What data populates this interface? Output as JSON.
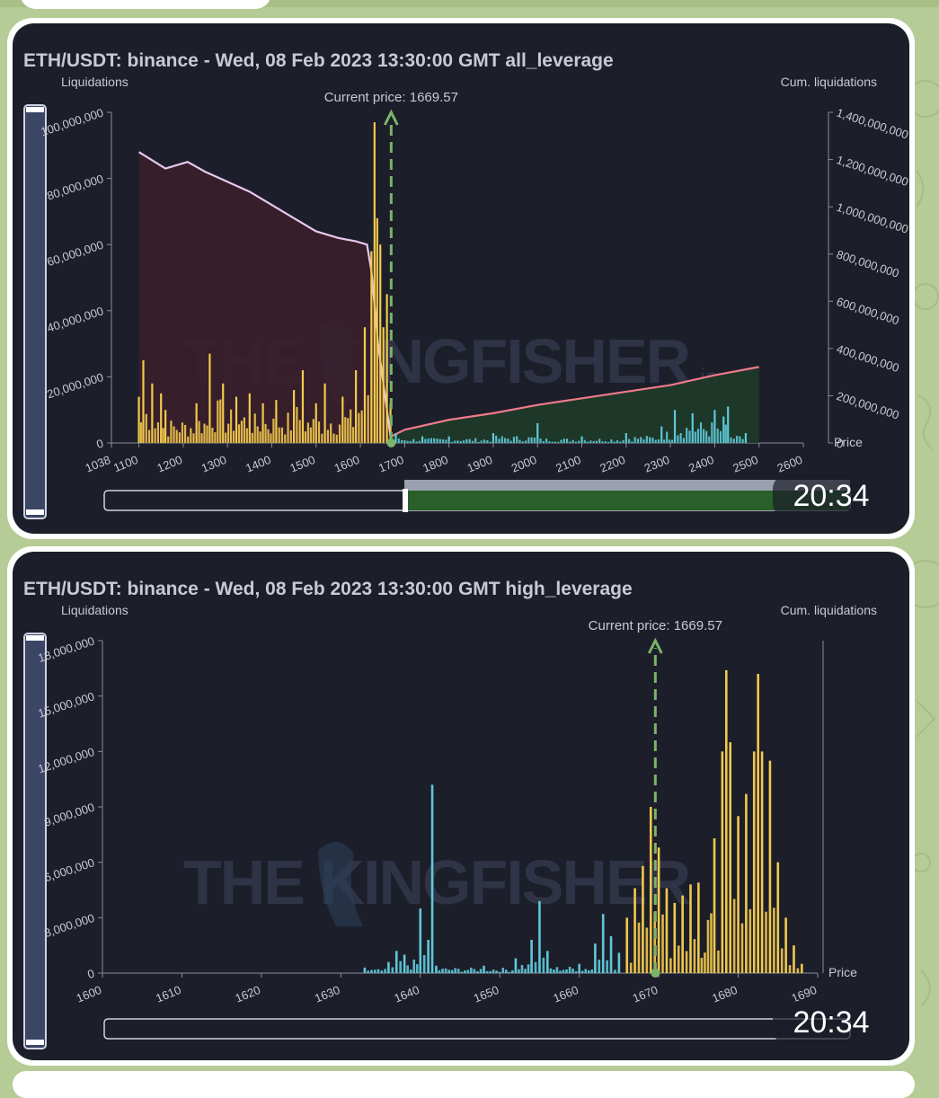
{
  "chart_data": [
    {
      "type": "bar",
      "title": "ETH/USDT: binance - Wed, 08 Feb 2023 13:30:00 GMT all_leverage",
      "ylabel": "Liquidations",
      "y2label": "Cum. liquidations",
      "xlabel": "Price",
      "xlim": [
        1038,
        2600
      ],
      "ylim": [
        0,
        100000000
      ],
      "y2lim": [
        0,
        1400000000
      ],
      "x_ticks": [
        "1038",
        "1100",
        "1200",
        "1300",
        "1400",
        "1500",
        "1600",
        "1700",
        "1800",
        "1900",
        "2000",
        "2100",
        "2200",
        "2300",
        "2400",
        "2500",
        "2600"
      ],
      "y_ticks": [
        "0",
        "20,000,000",
        "40,000,000",
        "60,000,000",
        "80,000,000",
        "100,000,000"
      ],
      "y2_ticks": [
        "0",
        "200,000,000",
        "400,000,000",
        "600,000,000",
        "800,000,000",
        "1,000,000,000",
        "1,200,000,000",
        "1,400,000,000"
      ],
      "current_price_label": "Current price: 1669.57",
      "current_price": 1669.57,
      "watermark": "THE KINGFISHER",
      "watermark_suffix": ".io",
      "colors": {
        "long_bars": "#f2c94c",
        "short_bars": "#5ec8d8",
        "long_cum": "#e9c8f0",
        "short_cum": "#f07a8a",
        "long_fill": "#3a1f2a",
        "short_fill": "#1e3a28",
        "price_line": "#7bb36a"
      },
      "series": [
        {
          "name": "long_liquidations_peaks",
          "points": [
            [
              1100,
              14000000
            ],
            [
              1110,
              25000000
            ],
            [
              1130,
              18000000
            ],
            [
              1150,
              15000000
            ],
            [
              1160,
              10000000
            ],
            [
              1230,
              12000000
            ],
            [
              1260,
              27000000
            ],
            [
              1290,
              18000000
            ],
            [
              1320,
              14000000
            ],
            [
              1350,
              15000000
            ],
            [
              1380,
              12000000
            ],
            [
              1410,
              13000000
            ],
            [
              1450,
              16000000
            ],
            [
              1470,
              22000000
            ],
            [
              1500,
              12000000
            ],
            [
              1520,
              18000000
            ],
            [
              1560,
              14000000
            ],
            [
              1590,
              22000000
            ],
            [
              1610,
              35000000
            ],
            [
              1625,
              58000000
            ],
            [
              1632,
              97000000
            ],
            [
              1638,
              68000000
            ],
            [
              1645,
              60000000
            ],
            [
              1652,
              35000000
            ],
            [
              1660,
              45000000
            ],
            [
              1668,
              12000000
            ]
          ]
        },
        {
          "name": "short_liquidations_peaks",
          "points": [
            [
              1680,
              3000000
            ],
            [
              1740,
              2000000
            ],
            [
              1800,
              2000000
            ],
            [
              1900,
              3000000
            ],
            [
              2000,
              6000000
            ],
            [
              2100,
              2000000
            ],
            [
              2200,
              3000000
            ],
            [
              2280,
              5000000
            ],
            [
              2310,
              10000000
            ],
            [
              2350,
              9000000
            ],
            [
              2400,
              10000000
            ],
            [
              2420,
              8000000
            ],
            [
              2430,
              11000000
            ],
            [
              2470,
              3000000
            ]
          ]
        },
        {
          "name": "cum_long",
          "points": [
            [
              1100,
              88000000
            ],
            [
              1160,
              83000000
            ],
            [
              1210,
              85000000
            ],
            [
              1250,
              82000000
            ],
            [
              1300,
              79000000
            ],
            [
              1350,
              76000000
            ],
            [
              1400,
              72000000
            ],
            [
              1450,
              68000000
            ],
            [
              1500,
              64000000
            ],
            [
              1550,
              62000000
            ],
            [
              1590,
              61000000
            ],
            [
              1615,
              60000000
            ],
            [
              1625,
              52000000
            ],
            [
              1640,
              30000000
            ],
            [
              1655,
              15000000
            ],
            [
              1668,
              2000000
            ]
          ]
        },
        {
          "name": "cum_short",
          "points": [
            [
              1670,
              2000000
            ],
            [
              1700,
              4000000
            ],
            [
              1800,
              7000000
            ],
            [
              1900,
              9000000
            ],
            [
              2000,
              11500000
            ],
            [
              2100,
              13500000
            ],
            [
              2200,
              15500000
            ],
            [
              2300,
              17500000
            ],
            [
              2400,
              20500000
            ],
            [
              2500,
              23000000
            ]
          ]
        }
      ]
    },
    {
      "type": "bar",
      "title": "ETH/USDT: binance - Wed, 08 Feb 2023 13:30:00 GMT high_leverage",
      "ylabel": "Liquidations",
      "y2label": "Cum. liquidations",
      "xlabel": "Price",
      "xlim": [
        1600,
        1690
      ],
      "ylim": [
        0,
        18000000
      ],
      "x_ticks": [
        "1600",
        "1610",
        "1620",
        "1630",
        "1640",
        "1650",
        "1660",
        "1670",
        "1680",
        "1690"
      ],
      "y_ticks": [
        "0",
        "3,000,000",
        "6,000,000",
        "9,000,000",
        "12,000,000",
        "15,000,000",
        "18,000,000"
      ],
      "current_price_label": "Current price: 1669.57",
      "current_price": 1669.57,
      "watermark": "THE KINGFISHER",
      "series": [
        {
          "name": "short_liquidations_peaks",
          "points": [
            [
              1633,
              300000
            ],
            [
              1636,
              600000
            ],
            [
              1637,
              1200000
            ],
            [
              1638,
              1000000
            ],
            [
              1640,
              3500000
            ],
            [
              1641,
              1800000
            ],
            [
              1641.5,
              10200000
            ],
            [
              1642,
              400000
            ],
            [
              1648,
              400000
            ],
            [
              1652,
              800000
            ],
            [
              1654,
              1800000
            ],
            [
              1655,
              3900000
            ],
            [
              1656,
              1200000
            ],
            [
              1660,
              500000
            ],
            [
              1662,
              1600000
            ],
            [
              1663,
              3200000
            ],
            [
              1664,
              2000000
            ],
            [
              1665,
              1100000
            ]
          ]
        },
        {
          "name": "long_liquidations_peaks",
          "points": [
            [
              1666,
              3000000
            ],
            [
              1667,
              4600000
            ],
            [
              1668,
              5800000
            ],
            [
              1669,
              9000000
            ],
            [
              1670,
              6800000
            ],
            [
              1671,
              4600000
            ],
            [
              1672,
              3800000
            ],
            [
              1673,
              4200000
            ],
            [
              1674,
              4800000
            ],
            [
              1675,
              4900000
            ],
            [
              1677,
              7300000
            ],
            [
              1678,
              12000000
            ],
            [
              1678.5,
              16400000
            ],
            [
              1679,
              12500000
            ],
            [
              1680,
              8500000
            ],
            [
              1681,
              9700000
            ],
            [
              1682,
              12000000
            ],
            [
              1682.5,
              16200000
            ],
            [
              1683,
              12000000
            ],
            [
              1684,
              11500000
            ],
            [
              1685,
              6000000
            ],
            [
              1686,
              3000000
            ],
            [
              1687,
              1500000
            ],
            [
              1688,
              500000
            ]
          ]
        }
      ]
    }
  ],
  "times": [
    "20:34",
    "20:34"
  ]
}
